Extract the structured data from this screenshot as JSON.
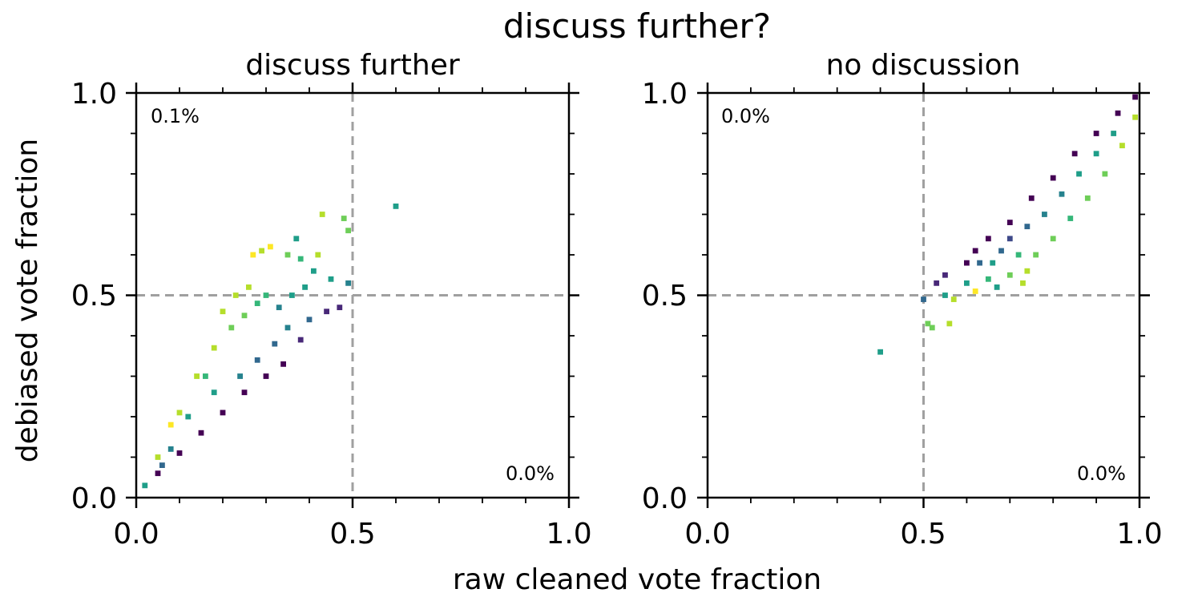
{
  "figure": {
    "suptitle": "discuss further?",
    "xlabel": "raw cleaned vote fraction",
    "ylabel": "debiased vote fraction"
  },
  "chart_data": [
    {
      "type": "scatter",
      "title": "discuss further",
      "xlim": [
        0.0,
        1.0
      ],
      "ylim": [
        0.0,
        1.0
      ],
      "x_ticks": [
        "0.0",
        "0.5",
        "1.0"
      ],
      "y_ticks": [
        "0.0",
        "0.5",
        "1.0"
      ],
      "reference_lines": {
        "x": 0.5,
        "y": 0.5,
        "style": "dashed",
        "color": "#a0a0a0"
      },
      "annotations": {
        "top_left": "0.1%",
        "bottom_right": "0.0%"
      },
      "colormap": "viridis",
      "points": [
        [
          0.02,
          0.03,
          0.5
        ],
        [
          0.05,
          0.1,
          0.9
        ],
        [
          0.08,
          0.18,
          0.95
        ],
        [
          0.1,
          0.21,
          0.9
        ],
        [
          0.14,
          0.3,
          0.9
        ],
        [
          0.18,
          0.37,
          0.85
        ],
        [
          0.22,
          0.42,
          0.8
        ],
        [
          0.25,
          0.45,
          0.75
        ],
        [
          0.28,
          0.48,
          0.7
        ],
        [
          0.3,
          0.5,
          0.65
        ],
        [
          0.27,
          0.6,
          0.95
        ],
        [
          0.29,
          0.61,
          0.9
        ],
        [
          0.31,
          0.62,
          0.95
        ],
        [
          0.35,
          0.6,
          0.8
        ],
        [
          0.38,
          0.59,
          0.7
        ],
        [
          0.37,
          0.64,
          0.55
        ],
        [
          0.42,
          0.6,
          0.85
        ],
        [
          0.43,
          0.7,
          0.9
        ],
        [
          0.48,
          0.69,
          0.8
        ],
        [
          0.49,
          0.66,
          0.75
        ],
        [
          0.6,
          0.72,
          0.6
        ],
        [
          0.45,
          0.54,
          0.5
        ],
        [
          0.49,
          0.53,
          0.45
        ],
        [
          0.47,
          0.47,
          0.1
        ],
        [
          0.44,
          0.46,
          0.15
        ],
        [
          0.4,
          0.44,
          0.3
        ],
        [
          0.38,
          0.39,
          0.1
        ],
        [
          0.34,
          0.33,
          0.05
        ],
        [
          0.3,
          0.3,
          0.05
        ],
        [
          0.25,
          0.26,
          0.05
        ],
        [
          0.2,
          0.21,
          0.05
        ],
        [
          0.15,
          0.16,
          0.05
        ],
        [
          0.1,
          0.11,
          0.05
        ],
        [
          0.05,
          0.06,
          0.05
        ],
        [
          0.41,
          0.56,
          0.6
        ],
        [
          0.39,
          0.52,
          0.55
        ],
        [
          0.36,
          0.5,
          0.5
        ],
        [
          0.33,
          0.47,
          0.4
        ],
        [
          0.26,
          0.52,
          0.85
        ],
        [
          0.23,
          0.5,
          0.9
        ],
        [
          0.2,
          0.46,
          0.92
        ],
        [
          0.35,
          0.42,
          0.45
        ],
        [
          0.32,
          0.38,
          0.35
        ],
        [
          0.28,
          0.34,
          0.3
        ],
        [
          0.24,
          0.3,
          0.4
        ],
        [
          0.18,
          0.26,
          0.5
        ],
        [
          0.16,
          0.3,
          0.65
        ],
        [
          0.12,
          0.2,
          0.55
        ],
        [
          0.08,
          0.12,
          0.45
        ],
        [
          0.06,
          0.08,
          0.3
        ]
      ]
    },
    {
      "type": "scatter",
      "title": "no discussion",
      "xlim": [
        0.0,
        1.0
      ],
      "ylim": [
        0.0,
        1.0
      ],
      "x_ticks": [
        "0.0",
        "0.5",
        "1.0"
      ],
      "y_ticks": [
        "0.0",
        "0.5",
        "1.0"
      ],
      "reference_lines": {
        "x": 0.5,
        "y": 0.5,
        "style": "dashed",
        "color": "#a0a0a0"
      },
      "annotations": {
        "top_left": "0.0%",
        "bottom_right": "0.0%"
      },
      "colormap": "viridis",
      "points": [
        [
          0.4,
          0.36,
          0.6
        ],
        [
          0.51,
          0.43,
          0.8
        ],
        [
          0.52,
          0.42,
          0.75
        ],
        [
          0.56,
          0.43,
          0.85
        ],
        [
          0.57,
          0.49,
          0.9
        ],
        [
          0.55,
          0.5,
          0.5
        ],
        [
          0.5,
          0.49,
          0.3
        ],
        [
          0.53,
          0.53,
          0.1
        ],
        [
          0.55,
          0.55,
          0.1
        ],
        [
          0.6,
          0.58,
          0.05
        ],
        [
          0.62,
          0.61,
          0.05
        ],
        [
          0.65,
          0.64,
          0.05
        ],
        [
          0.7,
          0.68,
          0.05
        ],
        [
          0.75,
          0.74,
          0.05
        ],
        [
          0.8,
          0.79,
          0.05
        ],
        [
          0.85,
          0.85,
          0.05
        ],
        [
          0.9,
          0.9,
          0.05
        ],
        [
          0.95,
          0.95,
          0.05
        ],
        [
          0.99,
          0.99,
          0.05
        ],
        [
          0.6,
          0.53,
          0.55
        ],
        [
          0.62,
          0.51,
          0.95
        ],
        [
          0.65,
          0.54,
          0.7
        ],
        [
          0.67,
          0.52,
          0.6
        ],
        [
          0.7,
          0.55,
          0.75
        ],
        [
          0.73,
          0.53,
          0.9
        ],
        [
          0.74,
          0.56,
          0.85
        ],
        [
          0.72,
          0.6,
          0.65
        ],
        [
          0.76,
          0.6,
          0.8
        ],
        [
          0.8,
          0.64,
          0.75
        ],
        [
          0.84,
          0.69,
          0.7
        ],
        [
          0.88,
          0.74,
          0.75
        ],
        [
          0.92,
          0.8,
          0.8
        ],
        [
          0.96,
          0.87,
          0.85
        ],
        [
          0.99,
          0.94,
          0.9
        ],
        [
          0.63,
          0.58,
          0.3
        ],
        [
          0.68,
          0.61,
          0.35
        ],
        [
          0.66,
          0.58,
          0.5
        ],
        [
          0.78,
          0.7,
          0.4
        ],
        [
          0.82,
          0.75,
          0.45
        ],
        [
          0.86,
          0.8,
          0.5
        ],
        [
          0.9,
          0.85,
          0.5
        ],
        [
          0.94,
          0.9,
          0.55
        ],
        [
          0.7,
          0.64,
          0.25
        ],
        [
          0.74,
          0.67,
          0.3
        ]
      ]
    }
  ]
}
